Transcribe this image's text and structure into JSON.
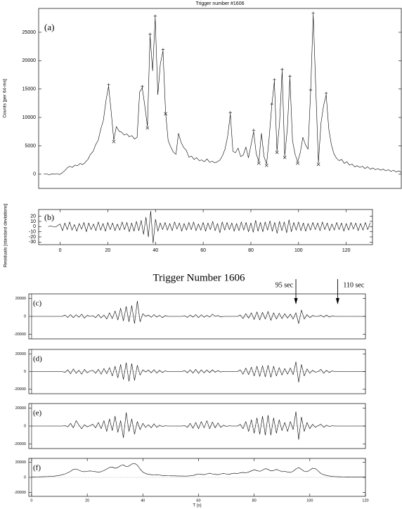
{
  "chart_data": [
    {
      "type": "line",
      "title": "Trigger number #1606",
      "label": "(a)",
      "ylabel": "Counts [per 64-ms]",
      "color": "#000000",
      "x": [
        -7,
        -6,
        -5,
        -4,
        -3,
        -2,
        -1,
        0,
        1,
        2,
        3,
        4,
        5,
        6,
        7,
        8,
        9,
        10,
        11,
        12,
        13,
        14,
        15,
        16,
        17,
        18,
        19,
        20,
        21,
        22,
        23,
        24,
        25,
        26,
        27,
        28,
        29,
        30,
        31,
        32,
        33,
        34,
        35,
        36,
        37,
        38,
        39,
        40,
        41,
        42,
        43,
        44,
        45,
        46,
        47,
        48,
        49,
        50,
        51,
        52,
        53,
        54,
        55,
        56,
        57,
        58,
        59,
        60,
        61,
        62,
        63,
        64,
        65,
        66,
        67,
        68,
        69,
        70,
        71,
        72,
        73,
        74,
        75,
        76,
        77,
        78,
        79,
        80,
        81,
        82,
        83,
        84,
        85,
        86,
        87,
        88,
        89,
        90,
        91,
        92,
        93,
        94,
        95,
        96,
        97,
        98,
        99,
        100,
        101,
        102,
        103,
        104,
        105,
        106,
        107,
        108,
        109,
        110,
        111,
        112,
        113,
        114,
        115,
        116,
        117,
        118,
        119,
        120,
        121,
        122,
        123,
        124,
        125,
        126,
        127,
        128,
        129,
        130,
        131
      ],
      "values": [
        0,
        100,
        -100,
        50,
        0,
        100,
        -50,
        200,
        600,
        1100,
        1400,
        1200,
        1600,
        1500,
        1900,
        1700,
        2100,
        2600,
        3500,
        4000,
        5200,
        6000,
        8000,
        9500,
        13000,
        15500,
        11000,
        6000,
        8400,
        7600,
        7400,
        6900,
        7100,
        6600,
        6800,
        6200,
        6500,
        14500,
        15200,
        12000,
        8400,
        24400,
        18200,
        27600,
        14000,
        19500,
        21700,
        10900,
        5900,
        4800,
        3900,
        3500,
        7200,
        5600,
        4700,
        4200,
        3000,
        3200,
        2600,
        2900,
        2400,
        2500,
        2200,
        2700,
        2100,
        2300,
        2000,
        2200,
        2500,
        3300,
        4500,
        6800,
        10600,
        4000,
        3800,
        4600,
        3100,
        3400,
        4800,
        2900,
        5200,
        7500,
        3600,
        2200,
        7200,
        3100,
        1800,
        6500,
        12100,
        16400,
        4100,
        9000,
        18200,
        3200,
        8000,
        17000,
        5900,
        3500,
        2200,
        3800,
        6500,
        5200,
        4400,
        14600,
        28100,
        15000,
        2000,
        9000,
        12100,
        14000,
        8000,
        5200,
        3600,
        2800,
        2400,
        2600,
        1900,
        2200,
        1600,
        1800,
        1300,
        1500,
        1200,
        1400,
        1000,
        1300,
        900,
        1100,
        800,
        1000,
        700,
        900,
        600,
        800,
        500,
        700,
        400,
        600,
        300
      ],
      "peaks": {
        "x": [
          18,
          31,
          34,
          36,
          39,
          65,
          74,
          81,
          82,
          85,
          88,
          96,
          97,
          102
        ],
        "y": [
          15500,
          15200,
          24400,
          27600,
          21700,
          10600,
          7500,
          12100,
          16400,
          18200,
          17000,
          14600,
          28100,
          14000
        ]
      },
      "troughs": {
        "x": [
          20,
          33,
          40,
          76,
          79,
          83,
          86,
          91,
          99
        ],
        "y": [
          6000,
          8400,
          10900,
          2200,
          1800,
          4100,
          3200,
          2200,
          2000
        ]
      },
      "xlim": [
        -9,
        131
      ],
      "ylim": [
        -2500,
        29200
      ],
      "yticks": [
        0,
        5000,
        10000,
        15000,
        20000,
        25000
      ]
    },
    {
      "type": "line",
      "label": "(b)",
      "ylabel": "Residuals [standard deviations]",
      "color": "#000000",
      "x": [
        -5,
        -4,
        -3,
        -2,
        -1,
        0,
        1,
        2,
        3,
        4,
        5,
        6,
        7,
        8,
        9,
        10,
        11,
        12,
        13,
        14,
        15,
        16,
        17,
        18,
        19,
        20,
        21,
        22,
        23,
        24,
        25,
        26,
        27,
        28,
        29,
        30,
        31,
        32,
        33,
        34,
        35,
        36,
        37,
        38,
        39,
        40,
        41,
        42,
        43,
        44,
        45,
        46,
        47,
        48,
        49,
        50,
        51,
        52,
        53,
        54,
        55,
        56,
        57,
        58,
        59,
        60,
        61,
        62,
        63,
        64,
        65,
        66,
        67,
        68,
        69,
        70,
        71,
        72,
        73,
        74,
        75,
        76,
        77,
        78,
        79,
        80,
        81,
        82,
        83,
        84,
        85,
        86,
        87,
        88,
        89,
        90,
        91,
        92,
        93,
        94,
        95,
        96,
        97,
        98,
        99,
        100,
        101,
        102,
        103,
        104,
        105,
        106,
        107,
        108,
        109,
        110,
        111,
        112,
        113,
        114,
        115,
        116,
        117,
        118,
        119,
        120,
        121,
        122,
        123,
        124,
        125,
        126,
        127,
        128,
        129,
        130
      ],
      "values": [
        0,
        1,
        0,
        -1,
        2,
        5,
        -8,
        7,
        -6,
        9,
        -7,
        4,
        -9,
        6,
        -5,
        8,
        -10,
        7,
        -6,
        5,
        -8,
        9,
        -7,
        6,
        -9,
        8,
        -6,
        7,
        -8,
        5,
        -7,
        9,
        -6,
        8,
        -10,
        7,
        -9,
        10,
        -8,
        12,
        -15,
        18,
        -20,
        30,
        -32,
        14,
        -9,
        7,
        -6,
        8,
        -7,
        6,
        -8,
        9,
        -5,
        7,
        -9,
        6,
        -7,
        8,
        -6,
        9,
        -8,
        5,
        -7,
        8,
        -9,
        7,
        -6,
        10,
        -8,
        6,
        -12,
        9,
        -7,
        8,
        -6,
        7,
        -9,
        6,
        -8,
        9,
        -7,
        8,
        -10,
        7,
        -11,
        12,
        -9,
        8,
        -10,
        9,
        -7,
        11,
        -9,
        8,
        -13,
        10,
        -8,
        9,
        -12,
        13,
        -10,
        8,
        -7,
        9,
        -8,
        7,
        -9,
        6,
        -7,
        8,
        -6,
        7,
        -8,
        9,
        -6,
        7,
        -8,
        5,
        -7,
        8,
        -6,
        7,
        -9,
        6,
        -7,
        8,
        -5,
        7,
        -8,
        6,
        -7,
        8,
        -6,
        7
      ],
      "xlim": [
        -9,
        131
      ],
      "ylim": [
        -35,
        33
      ],
      "xticks": [
        0,
        20,
        40,
        60,
        80,
        100,
        120
      ],
      "yticks": [
        20,
        10,
        0,
        -10,
        -20,
        -30
      ]
    },
    {
      "type": "line",
      "title": "Trigger Number 1606",
      "xlabel": "T (s)",
      "color": "#000000",
      "x": [
        0,
        1,
        2,
        3,
        4,
        5,
        6,
        7,
        8,
        9,
        10,
        11,
        12,
        13,
        14,
        15,
        16,
        17,
        18,
        19,
        20,
        21,
        22,
        23,
        24,
        25,
        26,
        27,
        28,
        29,
        30,
        31,
        32,
        33,
        34,
        35,
        36,
        37,
        38,
        39,
        40,
        41,
        42,
        43,
        44,
        45,
        46,
        47,
        48,
        49,
        50,
        51,
        52,
        53,
        54,
        55,
        56,
        57,
        58,
        59,
        60,
        61,
        62,
        63,
        64,
        65,
        66,
        67,
        68,
        69,
        70,
        71,
        72,
        73,
        74,
        75,
        76,
        77,
        78,
        79,
        80,
        81,
        82,
        83,
        84,
        85,
        86,
        87,
        88,
        89,
        90,
        91,
        92,
        93,
        94,
        95,
        96,
        97,
        98,
        99,
        100,
        101,
        102,
        103,
        104,
        105,
        106,
        107,
        108,
        109,
        110,
        111,
        112,
        113,
        114,
        115,
        116,
        117,
        118,
        119,
        120
      ],
      "panels": [
        {
          "label": "(c)",
          "values": [
            0,
            0,
            0,
            0,
            0,
            0,
            0,
            0,
            0,
            0,
            0,
            0,
            1500,
            -1200,
            2000,
            -1500,
            1800,
            -1000,
            2500,
            -2000,
            1200,
            0,
            800,
            -1500,
            2200,
            -1800,
            1500,
            -3000,
            4000,
            -2500,
            6000,
            -4000,
            9000,
            -5000,
            11000,
            -6000,
            12000,
            -8000,
            17000,
            -6000,
            3000,
            0,
            1500,
            -1000,
            2000,
            -800,
            1200,
            -1500,
            900,
            0,
            0,
            0,
            0,
            0,
            0,
            800,
            -1200,
            1500,
            -900,
            2000,
            -1500,
            1800,
            -1000,
            1200,
            -800,
            2500,
            0,
            1000,
            -700,
            0,
            0,
            0,
            0,
            0,
            0,
            1500,
            -2500,
            3000,
            -2000,
            4000,
            -3500,
            5000,
            -4000,
            4500,
            -3000,
            5500,
            -4500,
            4000,
            -3000,
            3500,
            -2500,
            3000,
            -2000,
            2500,
            -3000,
            4000,
            -8000,
            7000,
            -3000,
            2000,
            -1500,
            1000,
            0,
            0,
            1200,
            -900,
            1500,
            -800,
            600,
            0,
            0,
            0,
            0,
            0,
            0,
            0,
            0,
            0,
            0,
            0,
            0
          ]
        },
        {
          "label": "(d)",
          "values": [
            0,
            0,
            0,
            0,
            0,
            0,
            0,
            0,
            0,
            0,
            0,
            0,
            -1000,
            2000,
            -2500,
            3000,
            -2000,
            1500,
            -3000,
            2500,
            -1500,
            800,
            1500,
            -2000,
            2500,
            -3000,
            3500,
            -2500,
            4500,
            -5000,
            6000,
            -7000,
            8000,
            -9000,
            10000,
            -11000,
            9000,
            -10000,
            7000,
            -4000,
            2000,
            -500,
            1800,
            -1500,
            2200,
            -1800,
            1500,
            -1200,
            800,
            0,
            0,
            0,
            0,
            0,
            0,
            1200,
            -1500,
            2000,
            -1800,
            2500,
            -2200,
            2000,
            -1500,
            1800,
            -1200,
            2000,
            -800,
            1200,
            -600,
            300,
            0,
            0,
            0,
            0,
            0,
            2000,
            -3000,
            4000,
            -3500,
            5000,
            -5000,
            6000,
            -5500,
            6500,
            -6000,
            7000,
            -6500,
            6000,
            -5000,
            4500,
            -4000,
            3500,
            -3000,
            4000,
            -3500,
            11000,
            -12000,
            8000,
            -5000,
            3000,
            -2000,
            1500,
            -800,
            0,
            2500,
            -2000,
            1500,
            -1200,
            800,
            0,
            0,
            0,
            0,
            0,
            0,
            0,
            0,
            0,
            0,
            0,
            0
          ]
        },
        {
          "label": "(e)",
          "values": [
            0,
            0,
            0,
            0,
            0,
            0,
            0,
            0,
            0,
            0,
            0,
            0,
            500,
            -1000,
            3000,
            -2000,
            6000,
            1000,
            -3000,
            1500,
            -1000,
            500,
            2000,
            -2000,
            4000,
            -3000,
            6000,
            -6000,
            8000,
            -5000,
            11000,
            -7000,
            6000,
            -13000,
            15000,
            -6000,
            8000,
            -9000,
            5000,
            -4000,
            3000,
            -1500,
            1500,
            -2000,
            2500,
            -1500,
            1000,
            -500,
            300,
            0,
            0,
            0,
            0,
            0,
            0,
            500,
            -1500,
            3000,
            -2500,
            4000,
            -3000,
            5000,
            -2000,
            6000,
            -3000,
            4500,
            -2000,
            3500,
            -1500,
            1000,
            -500,
            300,
            0,
            0,
            0,
            2000,
            -3000,
            5000,
            -6000,
            7000,
            -8000,
            9000,
            -9000,
            11000,
            -10000,
            12000,
            -10000,
            9000,
            -8000,
            7000,
            -5000,
            4000,
            -6000,
            5000,
            -4000,
            16000,
            -15000,
            10000,
            -6000,
            4000,
            -3000,
            2000,
            -1500,
            500,
            2000,
            -1500,
            1000,
            -500,
            300,
            0,
            0,
            0,
            0,
            0,
            0,
            0,
            0,
            0,
            0,
            0,
            0
          ]
        },
        {
          "label": "(f)",
          "values": [
            500,
            600,
            700,
            800,
            900,
            1000,
            1100,
            1300,
            1600,
            2000,
            2600,
            3400,
            4500,
            6000,
            8000,
            10500,
            11000,
            9500,
            8000,
            7500,
            8000,
            8500,
            8000,
            7500,
            7000,
            7500,
            9000,
            11000,
            13000,
            13500,
            12000,
            13000,
            15500,
            16500,
            14000,
            15000,
            17500,
            18500,
            16000,
            11000,
            7000,
            5000,
            4000,
            3500,
            3000,
            3500,
            3000,
            2500,
            2500,
            2200,
            2000,
            2000,
            1900,
            1800,
            1800,
            1700,
            1800,
            2000,
            2500,
            3500,
            4500,
            4000,
            3500,
            4500,
            5500,
            4500,
            4000,
            3500,
            4500,
            5000,
            4500,
            4000,
            5000,
            5500,
            5000,
            6000,
            6500,
            6000,
            7000,
            8500,
            10000,
            9000,
            8000,
            9500,
            11500,
            10500,
            8500,
            9000,
            10500,
            9000,
            7500,
            8000,
            7000,
            6500,
            8000,
            11000,
            13000,
            10500,
            8000,
            7500,
            9500,
            12000,
            11500,
            8500,
            5000,
            3500,
            2500,
            1800,
            1300,
            1000,
            900,
            800,
            700,
            600,
            600,
            500,
            500,
            400,
            400,
            400,
            400
          ]
        }
      ],
      "annotations": [
        {
          "text": "95 sec",
          "x": 95
        },
        {
          "text": "110 sec",
          "x": 110
        }
      ],
      "xlim": [
        -1,
        120
      ],
      "ylim": [
        -25000,
        25000
      ],
      "xticks": [
        0,
        20,
        40,
        60,
        80,
        100,
        120
      ],
      "yticks": [
        20000,
        0,
        -20000
      ]
    }
  ]
}
